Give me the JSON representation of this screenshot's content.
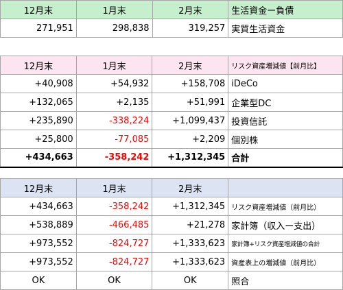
{
  "table1": {
    "header": [
      "12月末",
      "1月末",
      "2月末",
      "生活資金ー負債"
    ],
    "row": [
      "271,951",
      "298,838",
      "319,257",
      "実質生活資金"
    ]
  },
  "table2": {
    "header": [
      "12月末",
      "1月末",
      "2月末",
      "リスク資産増減値【前月比】"
    ],
    "rows": [
      [
        "+40,908",
        "+54,932",
        "+158,708",
        "iDeCo"
      ],
      [
        "+132,065",
        "+2,135",
        "+51,991",
        "企業型DC"
      ],
      [
        "+235,890",
        "-338,224",
        "+1,099,437",
        "投資信託"
      ],
      [
        "+25,800",
        "-77,085",
        "+2,209",
        "個別株"
      ]
    ],
    "total": [
      "+434,663",
      "-358,242",
      "+1,312,345",
      "合計"
    ]
  },
  "table3": {
    "header": [
      "12月末",
      "1月末",
      "2月末",
      ""
    ],
    "rows": [
      [
        "+434,663",
        "-358,242",
        "+1,312,345",
        "リスク資産増減値（前月比）"
      ],
      [
        "+538,889",
        "-466,485",
        "+21,278",
        "家計簿（収入ー支出）"
      ],
      [
        "+973,552",
        "-824,727",
        "+1,333,623",
        "家計簿+リスク資産増減値の合計"
      ],
      [
        "+973,552",
        "-824,727",
        "+1,333,623",
        "資産表上の増減値（前月比）"
      ],
      [
        "OK",
        "OK",
        "OK",
        "照合"
      ]
    ]
  },
  "colors": {
    "green": "#c6efce",
    "pink": "#fce4f0",
    "blue": "#dce3f3",
    "negative": "#ff0000"
  }
}
